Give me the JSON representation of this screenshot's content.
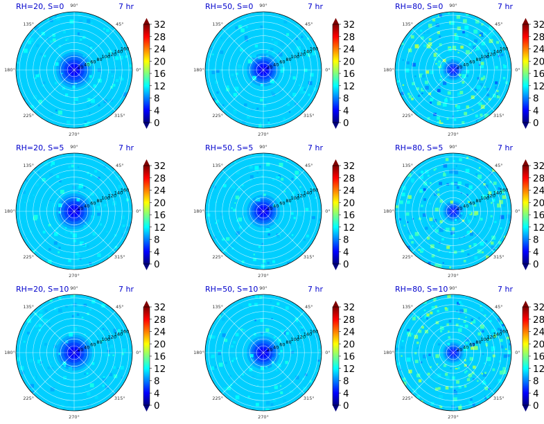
{
  "colors": {
    "title": "#0000cc",
    "grid": "#ffffff",
    "outline": "#000000",
    "colormap": [
      "#00007f",
      "#0000ff",
      "#007fff",
      "#00ffff",
      "#7fff7f",
      "#ffff00",
      "#ff7f00",
      "#ff0000",
      "#7f0000"
    ]
  },
  "chart_data": [
    {
      "type": "heatmap",
      "projection": "polar",
      "title": "RH=20, S=0",
      "time_label": "7 hr",
      "angle_ticks": [
        "0°",
        "45°",
        "90°",
        "135°",
        "180°",
        "225°",
        "270°",
        "315°"
      ],
      "radial_ticks": [
        "20",
        "40",
        "60",
        "80",
        "100",
        "120",
        "140",
        "160"
      ],
      "colorbar_ticks": [
        "0",
        "4",
        "8",
        "12",
        "16",
        "20",
        "24",
        "28",
        "32"
      ],
      "clim": [
        0,
        32
      ],
      "colorbar_extend": "both",
      "center_value": 2,
      "core_radius": 60,
      "background_value": 10.5,
      "speckle_level": 0.12,
      "seed": 11
    },
    {
      "type": "heatmap",
      "projection": "polar",
      "title": "RH=50, S=0",
      "time_label": "7 hr",
      "angle_ticks": [
        "0°",
        "45°",
        "90°",
        "135°",
        "180°",
        "225°",
        "270°",
        "315°"
      ],
      "radial_ticks": [
        "20",
        "40",
        "60",
        "80",
        "100",
        "120",
        "140",
        "160"
      ],
      "colorbar_ticks": [
        "0",
        "4",
        "8",
        "12",
        "16",
        "20",
        "24",
        "28",
        "32"
      ],
      "clim": [
        0,
        32
      ],
      "colorbar_extend": "both",
      "center_value": 2,
      "core_radius": 55,
      "background_value": 10.5,
      "speckle_level": 0.15,
      "seed": 23
    },
    {
      "type": "heatmap",
      "projection": "polar",
      "title": "RH=80, S=0",
      "time_label": "7 hr",
      "angle_ticks": [
        "0°",
        "45°",
        "90°",
        "135°",
        "180°",
        "225°",
        "270°",
        "315°"
      ],
      "radial_ticks": [
        "20",
        "40",
        "60",
        "80",
        "100",
        "120",
        "140",
        "160"
      ],
      "colorbar_ticks": [
        "0",
        "4",
        "8",
        "12",
        "16",
        "20",
        "24",
        "28",
        "32"
      ],
      "clim": [
        0,
        32
      ],
      "colorbar_extend": "both",
      "center_value": 3,
      "core_radius": 35,
      "background_value": 10.5,
      "speckle_level": 0.45,
      "seed": 37
    },
    {
      "type": "heatmap",
      "projection": "polar",
      "title": "RH=20, S=5",
      "time_label": "7 hr",
      "angle_ticks": [
        "0°",
        "45°",
        "90°",
        "135°",
        "180°",
        "225°",
        "270°",
        "315°"
      ],
      "radial_ticks": [
        "20",
        "40",
        "60",
        "80",
        "100",
        "120",
        "140",
        "160"
      ],
      "colorbar_ticks": [
        "0",
        "4",
        "8",
        "12",
        "16",
        "20",
        "24",
        "28",
        "32"
      ],
      "clim": [
        0,
        32
      ],
      "colorbar_extend": "both",
      "center_value": 2,
      "core_radius": 60,
      "background_value": 10.5,
      "speckle_level": 0.13,
      "seed": 41
    },
    {
      "type": "heatmap",
      "projection": "polar",
      "title": "RH=50, S=5",
      "time_label": "7 hr",
      "angle_ticks": [
        "0°",
        "45°",
        "90°",
        "135°",
        "180°",
        "225°",
        "270°",
        "315°"
      ],
      "radial_ticks": [
        "20",
        "40",
        "60",
        "80",
        "100",
        "120",
        "140",
        "160"
      ],
      "colorbar_ticks": [
        "0",
        "4",
        "8",
        "12",
        "16",
        "20",
        "24",
        "28",
        "32"
      ],
      "clim": [
        0,
        32
      ],
      "colorbar_extend": "both",
      "center_value": 2,
      "core_radius": 55,
      "background_value": 10.5,
      "speckle_level": 0.16,
      "seed": 53
    },
    {
      "type": "heatmap",
      "projection": "polar",
      "title": "RH=80, S=5",
      "time_label": "7 hr",
      "angle_ticks": [
        "0°",
        "45°",
        "90°",
        "135°",
        "180°",
        "225°",
        "270°",
        "315°"
      ],
      "radial_ticks": [
        "20",
        "40",
        "60",
        "80",
        "100",
        "120",
        "140",
        "160"
      ],
      "colorbar_ticks": [
        "0",
        "4",
        "8",
        "12",
        "16",
        "20",
        "24",
        "28",
        "32"
      ],
      "clim": [
        0,
        32
      ],
      "colorbar_extend": "both",
      "center_value": 3,
      "core_radius": 35,
      "background_value": 10.5,
      "speckle_level": 0.42,
      "seed": 67
    },
    {
      "type": "heatmap",
      "projection": "polar",
      "title": "RH=20, S=10",
      "time_label": "7 hr",
      "angle_ticks": [
        "0°",
        "45°",
        "90°",
        "135°",
        "180°",
        "225°",
        "270°",
        "315°"
      ],
      "radial_ticks": [
        "20",
        "40",
        "60",
        "80",
        "100",
        "120",
        "140",
        "160"
      ],
      "colorbar_ticks": [
        "0",
        "4",
        "8",
        "12",
        "16",
        "20",
        "24",
        "28",
        "32"
      ],
      "clim": [
        0,
        32
      ],
      "colorbar_extend": "both",
      "center_value": 2,
      "core_radius": 60,
      "background_value": 10.5,
      "speckle_level": 0.13,
      "seed": 71
    },
    {
      "type": "heatmap",
      "projection": "polar",
      "title": "RH=50, S=10",
      "time_label": "7 hr",
      "angle_ticks": [
        "0°",
        "45°",
        "90°",
        "135°",
        "180°",
        "225°",
        "270°",
        "315°"
      ],
      "radial_ticks": [
        "20",
        "40",
        "60",
        "80",
        "100",
        "120",
        "140",
        "160"
      ],
      "colorbar_ticks": [
        "0",
        "4",
        "8",
        "12",
        "16",
        "20",
        "24",
        "28",
        "32"
      ],
      "clim": [
        0,
        32
      ],
      "colorbar_extend": "both",
      "center_value": 2,
      "core_radius": 55,
      "background_value": 10.5,
      "speckle_level": 0.16,
      "seed": 83
    },
    {
      "type": "heatmap",
      "projection": "polar",
      "title": "RH=80, S=10",
      "time_label": "7 hr",
      "angle_ticks": [
        "0°",
        "45°",
        "90°",
        "135°",
        "180°",
        "225°",
        "270°",
        "315°"
      ],
      "radial_ticks": [
        "20",
        "40",
        "60",
        "80",
        "100",
        "120",
        "140",
        "160"
      ],
      "colorbar_ticks": [
        "0",
        "4",
        "8",
        "12",
        "16",
        "20",
        "24",
        "28",
        "32"
      ],
      "clim": [
        0,
        32
      ],
      "colorbar_extend": "both",
      "center_value": 3,
      "core_radius": 35,
      "background_value": 10.5,
      "speckle_level": 0.45,
      "seed": 97
    }
  ]
}
